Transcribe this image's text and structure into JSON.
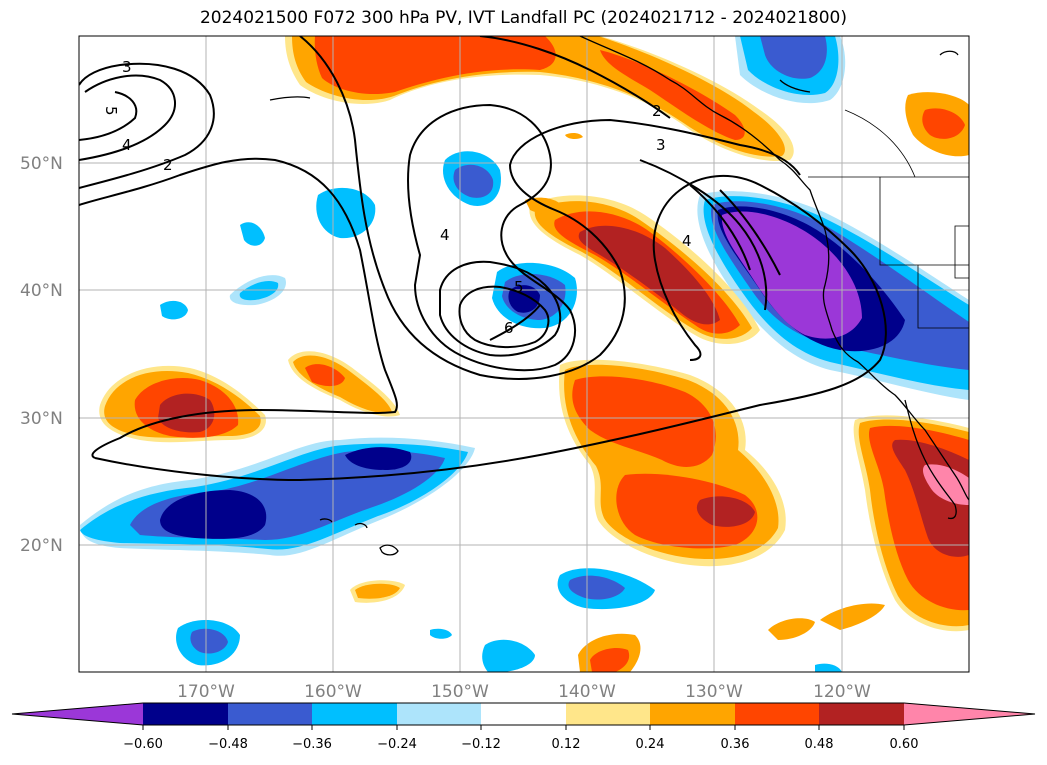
{
  "title": "2024021500 F072 300 hPa PV, IVT Landfall PC (2024021712 - 2024021800)",
  "map": {
    "extent": {
      "lon": [
        -180,
        -110
      ],
      "lat": [
        10,
        60
      ]
    },
    "lat_ticks": [
      {
        "value": 20,
        "label": "20°N"
      },
      {
        "value": 30,
        "label": "30°N"
      },
      {
        "value": 40,
        "label": "40°N"
      },
      {
        "value": 50,
        "label": "50°N"
      }
    ],
    "lon_ticks": [
      {
        "value": -170,
        "label": "170°W"
      },
      {
        "value": -160,
        "label": "160°W"
      },
      {
        "value": -150,
        "label": "150°W"
      },
      {
        "value": -140,
        "label": "140°W"
      },
      {
        "value": -130,
        "label": "130°W"
      },
      {
        "value": -120,
        "label": "120°W"
      }
    ],
    "grid": true,
    "contour_labels": [
      "3",
      "5",
      "4",
      "2",
      "2",
      "3",
      "4",
      "4",
      "5",
      "6"
    ]
  },
  "colorbar": {
    "ticks": [
      "−0.60",
      "−0.48",
      "−0.36",
      "−0.24",
      "−0.12",
      "0.12",
      "0.24",
      "0.36",
      "0.48",
      "0.60"
    ],
    "colors": {
      "lt_min060": "#9b37d8",
      "min060_min048": "#00008b",
      "min048_min036": "#3a5bd0",
      "min036_min024": "#00bfff",
      "min024_min012": "#ade4fb",
      "min012_012": "#ffffff",
      "p012_p024": "#ffe68a",
      "p024_p036": "#ffa500",
      "p036_p048": "#ff4500",
      "p048_p060": "#b22222",
      "gt_p060": "#ff85aa"
    }
  }
}
